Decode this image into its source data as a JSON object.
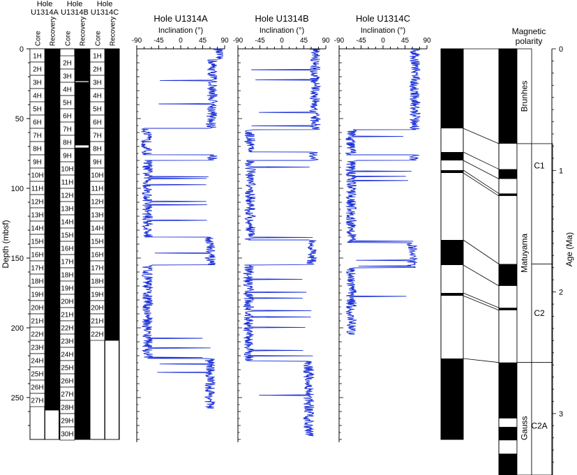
{
  "core_panel": {
    "y_axis_label": "Depth (mbsf)",
    "y_ticks": [
      0,
      50,
      100,
      150,
      200,
      250
    ],
    "ylim": [
      0,
      280
    ],
    "holes": [
      {
        "title_line1": "Hole",
        "title_line2": "U1314A",
        "core_label": "Core",
        "recovery_label": "Recovery",
        "cores": [
          "1H",
          "2H",
          "3H",
          "4H",
          "5H",
          "6H",
          "7H",
          "8H",
          "9H",
          "10H",
          "11H",
          "12H",
          "13H",
          "14H",
          "15H",
          "16H",
          "17H",
          "18H",
          "19H",
          "20H",
          "21H",
          "22H",
          "23H",
          "24H",
          "25H",
          "26H",
          "27H"
        ],
        "core_top_m": 0,
        "core_length_m": 9.5,
        "recovery_gaps_m": [
          [
            259,
            280
          ]
        ]
      },
      {
        "title_line1": "Hole",
        "title_line2": "U1314B",
        "core_label": "Core",
        "recovery_label": "Recovery",
        "cores": [
          "2H",
          "3H",
          "4H",
          "5H",
          "6H",
          "7H",
          "8H",
          "9H",
          "10H",
          "11H",
          "12H",
          "13H",
          "14H",
          "15H",
          "16H",
          "17H",
          "18H",
          "19H",
          "20H",
          "21H",
          "22H",
          "23H",
          "24H",
          "25H",
          "26H",
          "27H",
          "28H",
          "29H",
          "30H"
        ],
        "core_top_m": 5,
        "core_length_m": 9.5,
        "recovery_gaps_m": [
          [
            23,
            24
          ],
          [
            69,
            71
          ]
        ]
      },
      {
        "title_line1": "Hole",
        "title_line2": "U1314C",
        "core_label": "Core",
        "recovery_label": "Recovery",
        "cores": [
          "1H",
          "2H",
          "3H",
          "4H",
          "5H",
          "6H",
          "7H",
          "8H",
          "9H",
          "10H",
          "11H",
          "12H",
          "13H",
          "14H",
          "15H",
          "16H",
          "17H",
          "18H",
          "19H",
          "20H",
          "21H",
          "22H"
        ],
        "core_top_m": 0,
        "core_length_m": 9.5,
        "recovery_gaps_m": [
          [
            209,
            280
          ]
        ]
      }
    ]
  },
  "chart_data": [
    {
      "type": "line",
      "title": "Hole U1314A",
      "xlabel": "Inclination (°)",
      "x_ticks": [
        -90,
        -45,
        0,
        45,
        90
      ],
      "xlim": [
        -90,
        90
      ],
      "ylim": [
        0,
        280
      ],
      "series": [
        {
          "name": "Inclination",
          "values_by_depth_interval": [
            {
              "top_m": 0,
              "base_m": 8,
              "mean_deg": 78
            },
            {
              "top_m": 8,
              "base_m": 48,
              "mean_deg": 65
            },
            {
              "top_m": 48,
              "base_m": 57,
              "mean_deg": 62
            },
            {
              "top_m": 57,
              "base_m": 76,
              "mean_deg": -70
            },
            {
              "top_m": 76,
              "base_m": 80,
              "mean_deg": 65
            },
            {
              "top_m": 80,
              "base_m": 135,
              "mean_deg": -68
            },
            {
              "top_m": 135,
              "base_m": 155,
              "mean_deg": 60
            },
            {
              "top_m": 155,
              "base_m": 222,
              "mean_deg": -68
            },
            {
              "top_m": 222,
              "base_m": 258,
              "mean_deg": 60
            }
          ]
        }
      ]
    },
    {
      "type": "line",
      "title": "Hole U1314B",
      "xlabel": "Inclination (°)",
      "x_ticks": [
        -90,
        -45,
        0,
        45,
        90
      ],
      "xlim": [
        -90,
        90
      ],
      "ylim": [
        0,
        280
      ],
      "series": [
        {
          "name": "Inclination",
          "values_by_depth_interval": [
            {
              "top_m": 0,
              "base_m": 58,
              "mean_deg": 68
            },
            {
              "top_m": 58,
              "base_m": 74,
              "mean_deg": -65
            },
            {
              "top_m": 74,
              "base_m": 80,
              "mean_deg": 65
            },
            {
              "top_m": 80,
              "base_m": 137,
              "mean_deg": -65
            },
            {
              "top_m": 137,
              "base_m": 155,
              "mean_deg": 60
            },
            {
              "top_m": 155,
              "base_m": 224,
              "mean_deg": -68
            },
            {
              "top_m": 224,
              "base_m": 278,
              "mean_deg": 55
            }
          ]
        }
      ]
    },
    {
      "type": "line",
      "title": "Hole U1314C",
      "xlabel": "Inclination (°)",
      "x_ticks": [
        -90,
        -45,
        0,
        45,
        90
      ],
      "xlim": [
        -90,
        90
      ],
      "ylim": [
        0,
        280
      ],
      "series": [
        {
          "name": "Inclination",
          "values_by_depth_interval": [
            {
              "top_m": 0,
              "base_m": 58,
              "mean_deg": 65
            },
            {
              "top_m": 58,
              "base_m": 76,
              "mean_deg": -65
            },
            {
              "top_m": 76,
              "base_m": 80,
              "mean_deg": 65
            },
            {
              "top_m": 80,
              "base_m": 139,
              "mean_deg": -65
            },
            {
              "top_m": 139,
              "base_m": 157,
              "mean_deg": 60
            },
            {
              "top_m": 157,
              "base_m": 205,
              "mean_deg": -65
            }
          ]
        }
      ]
    }
  ],
  "polarity": {
    "title_line1": "Magnetic",
    "title_line2": "polarity",
    "age_axis_label": "Age (Ma)",
    "age_ticks": [
      0,
      1,
      2,
      3
    ],
    "age_range_ma": [
      0,
      3.5
    ],
    "depth_range_m": [
      0,
      280
    ],
    "depth_column_black_m": [
      [
        0,
        57
      ],
      [
        74,
        80
      ],
      [
        87,
        89
      ],
      [
        137,
        155
      ],
      [
        175,
        177
      ],
      [
        222,
        280
      ]
    ],
    "age_column_black_ma": [
      [
        0,
        0.78
      ],
      [
        0.99,
        1.07
      ],
      [
        1.19,
        1.21
      ],
      [
        1.77,
        1.95
      ],
      [
        2.13,
        2.15
      ],
      [
        2.58,
        3.04
      ],
      [
        3.11,
        3.22
      ],
      [
        3.33,
        3.6
      ]
    ],
    "tie_lines": [
      [
        57,
        0.78
      ],
      [
        74,
        0.99
      ],
      [
        80,
        1.07
      ],
      [
        87,
        1.19
      ],
      [
        89,
        1.21
      ],
      [
        137,
        1.77
      ],
      [
        155,
        1.95
      ],
      [
        175,
        2.13
      ],
      [
        177,
        2.15
      ],
      [
        222,
        2.58
      ]
    ],
    "epochs": [
      {
        "label": "Brunhes",
        "top_ma": 0,
        "base_ma": 0.78
      },
      {
        "label": "Matuyama",
        "top_ma": 0.78,
        "base_ma": 2.58
      },
      {
        "label": "Gauss",
        "top_ma": 2.58,
        "base_ma": 3.6
      }
    ],
    "chrons": [
      {
        "label": "C1",
        "top_ma": 0.78,
        "base_ma": 1.77
      },
      {
        "label": "C2",
        "top_ma": 1.77,
        "base_ma": 2.58
      },
      {
        "label": "C2A",
        "top_ma": 2.58,
        "base_ma": 3.6
      }
    ]
  }
}
